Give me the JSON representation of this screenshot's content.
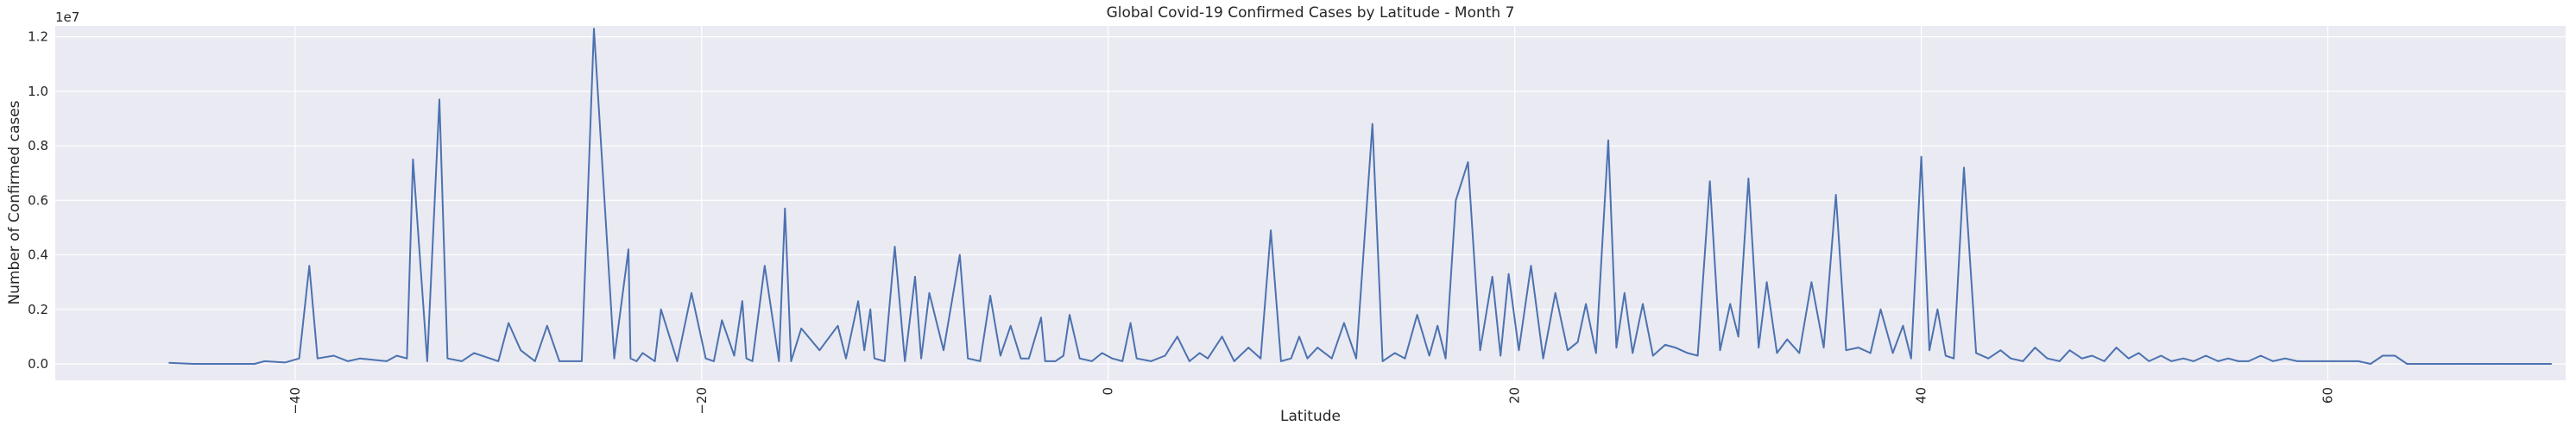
{
  "chart_data": {
    "type": "line",
    "title": "Global Covid-19 Confirmed Cases by Latitude - Month 7",
    "xlabel": "Latitude",
    "ylabel": "Number of Confirmed cases",
    "y_offset_label": "1e7",
    "xlim": [
      -51.8,
      71.7
    ],
    "ylim": [
      -0.06,
      1.24
    ],
    "y_unit_multiplier": 10000000,
    "x_ticks": [
      -40,
      -20,
      0,
      20,
      40,
      60
    ],
    "x_tick_labels": [
      "−40",
      "−20",
      "0",
      "20",
      "40",
      "60"
    ],
    "x_tick_rotation": -90,
    "y_ticks": [
      0.0,
      0.2,
      0.4,
      0.6,
      0.8,
      1.0,
      1.2
    ],
    "y_tick_labels": [
      "0.0",
      "0.2",
      "0.4",
      "0.6",
      "0.8",
      "1.0",
      "1.2"
    ],
    "grid": true,
    "series": [
      {
        "color": "#4c72b0",
        "x": [
          -46.2,
          -45.0,
          -44.0,
          -43.0,
          -42.0,
          -41.5,
          -40.5,
          -39.8,
          -39.3,
          -38.9,
          -38.1,
          -37.4,
          -36.8,
          -35.5,
          -35.0,
          -34.5,
          -34.2,
          -33.5,
          -32.9,
          -32.5,
          -31.8,
          -31.2,
          -30.0,
          -29.5,
          -28.9,
          -28.2,
          -27.6,
          -27.0,
          -25.9,
          -25.3,
          -24.3,
          -23.6,
          -23.5,
          -23.2,
          -22.9,
          -22.3,
          -22.0,
          -21.2,
          -20.5,
          -19.8,
          -19.4,
          -19.0,
          -18.4,
          -18.0,
          -17.8,
          -17.5,
          -16.9,
          -16.2,
          -15.9,
          -15.6,
          -15.1,
          -14.2,
          -13.3,
          -12.9,
          -12.3,
          -12.0,
          -11.7,
          -11.5,
          -11.0,
          -10.5,
          -10.0,
          -9.5,
          -9.2,
          -8.8,
          -8.1,
          -7.3,
          -6.9,
          -6.3,
          -5.8,
          -5.3,
          -4.8,
          -4.3,
          -3.9,
          -3.3,
          -3.1,
          -2.6,
          -2.2,
          -1.9,
          -1.4,
          -0.8,
          -0.3,
          0.2,
          0.7,
          1.1,
          1.4,
          2.1,
          2.8,
          3.4,
          4.0,
          4.5,
          4.9,
          5.6,
          6.2,
          6.9,
          7.5,
          8.0,
          8.5,
          9.0,
          9.4,
          9.8,
          10.3,
          11.0,
          11.6,
          12.2,
          13.0,
          13.5,
          14.1,
          14.6,
          15.2,
          15.8,
          16.2,
          16.6,
          17.1,
          17.7,
          18.3,
          18.9,
          19.3,
          19.7,
          20.2,
          20.8,
          21.4,
          22.0,
          22.6,
          23.1,
          23.5,
          24.0,
          24.6,
          25.0,
          25.4,
          25.8,
          26.3,
          26.8,
          27.4,
          27.9,
          28.5,
          29.0,
          29.6,
          30.1,
          30.6,
          31.0,
          31.5,
          32.0,
          32.4,
          32.9,
          33.4,
          34.0,
          34.6,
          35.2,
          35.8,
          36.3,
          36.9,
          37.5,
          38.0,
          38.6,
          39.1,
          39.5,
          40.0,
          40.4,
          40.8,
          41.2,
          41.6,
          42.1,
          42.7,
          43.3,
          43.9,
          44.4,
          45.0,
          45.6,
          46.2,
          46.8,
          47.3,
          47.9,
          48.4,
          49.0,
          49.6,
          50.2,
          50.7,
          51.2,
          51.8,
          52.3,
          52.9,
          53.4,
          54.0,
          54.6,
          55.1,
          55.6,
          56.1,
          56.7,
          57.3,
          57.9,
          58.5,
          59.1,
          59.7,
          60.3,
          60.9,
          61.5,
          62.1,
          62.7,
          63.3,
          63.9,
          64.5,
          65.1,
          65.7,
          66.3,
          66.9,
          67.5,
          68.3,
          69.1,
          69.9,
          71.0
        ],
        "y": [
          0.004,
          0.0,
          0.0,
          0.0,
          0.0,
          0.01,
          0.005,
          0.02,
          0.36,
          0.02,
          0.03,
          0.01,
          0.02,
          0.01,
          0.03,
          0.02,
          0.75,
          0.01,
          0.97,
          0.02,
          0.01,
          0.04,
          0.01,
          0.15,
          0.05,
          0.01,
          0.14,
          0.01,
          0.01,
          1.23,
          0.02,
          0.42,
          0.02,
          0.01,
          0.04,
          0.01,
          0.2,
          0.01,
          0.26,
          0.02,
          0.01,
          0.16,
          0.03,
          0.23,
          0.02,
          0.01,
          0.36,
          0.01,
          0.57,
          0.01,
          0.13,
          0.05,
          0.14,
          0.02,
          0.23,
          0.05,
          0.2,
          0.02,
          0.01,
          0.43,
          0.01,
          0.32,
          0.02,
          0.26,
          0.05,
          0.4,
          0.02,
          0.01,
          0.25,
          0.03,
          0.14,
          0.02,
          0.02,
          0.17,
          0.01,
          0.01,
          0.03,
          0.18,
          0.02,
          0.01,
          0.04,
          0.02,
          0.01,
          0.15,
          0.02,
          0.01,
          0.03,
          0.1,
          0.01,
          0.04,
          0.02,
          0.1,
          0.01,
          0.06,
          0.02,
          0.49,
          0.01,
          0.02,
          0.1,
          0.02,
          0.06,
          0.02,
          0.15,
          0.02,
          0.88,
          0.01,
          0.04,
          0.02,
          0.18,
          0.03,
          0.14,
          0.02,
          0.6,
          0.74,
          0.05,
          0.32,
          0.03,
          0.33,
          0.05,
          0.36,
          0.02,
          0.26,
          0.05,
          0.08,
          0.22,
          0.04,
          0.82,
          0.06,
          0.26,
          0.04,
          0.22,
          0.03,
          0.07,
          0.06,
          0.04,
          0.03,
          0.67,
          0.05,
          0.22,
          0.1,
          0.68,
          0.06,
          0.3,
          0.04,
          0.09,
          0.04,
          0.3,
          0.06,
          0.62,
          0.05,
          0.06,
          0.04,
          0.2,
          0.04,
          0.14,
          0.02,
          0.76,
          0.05,
          0.2,
          0.03,
          0.02,
          0.72,
          0.04,
          0.02,
          0.05,
          0.02,
          0.01,
          0.06,
          0.02,
          0.01,
          0.05,
          0.02,
          0.03,
          0.01,
          0.06,
          0.02,
          0.04,
          0.01,
          0.03,
          0.01,
          0.02,
          0.01,
          0.03,
          0.01,
          0.02,
          0.01,
          0.01,
          0.03,
          0.01,
          0.02,
          0.01,
          0.01,
          0.01,
          0.01,
          0.01,
          0.01,
          0.0,
          0.03,
          0.03,
          0.0,
          0.0,
          0.0,
          0.0,
          0.0,
          0.0,
          0.0,
          0.0,
          0.0,
          0.0,
          0.0
        ]
      }
    ]
  },
  "colors": {
    "plot_background": "#eaeaf2",
    "grid": "#ffffff",
    "line": "#4c72b0",
    "text": "#262626"
  }
}
